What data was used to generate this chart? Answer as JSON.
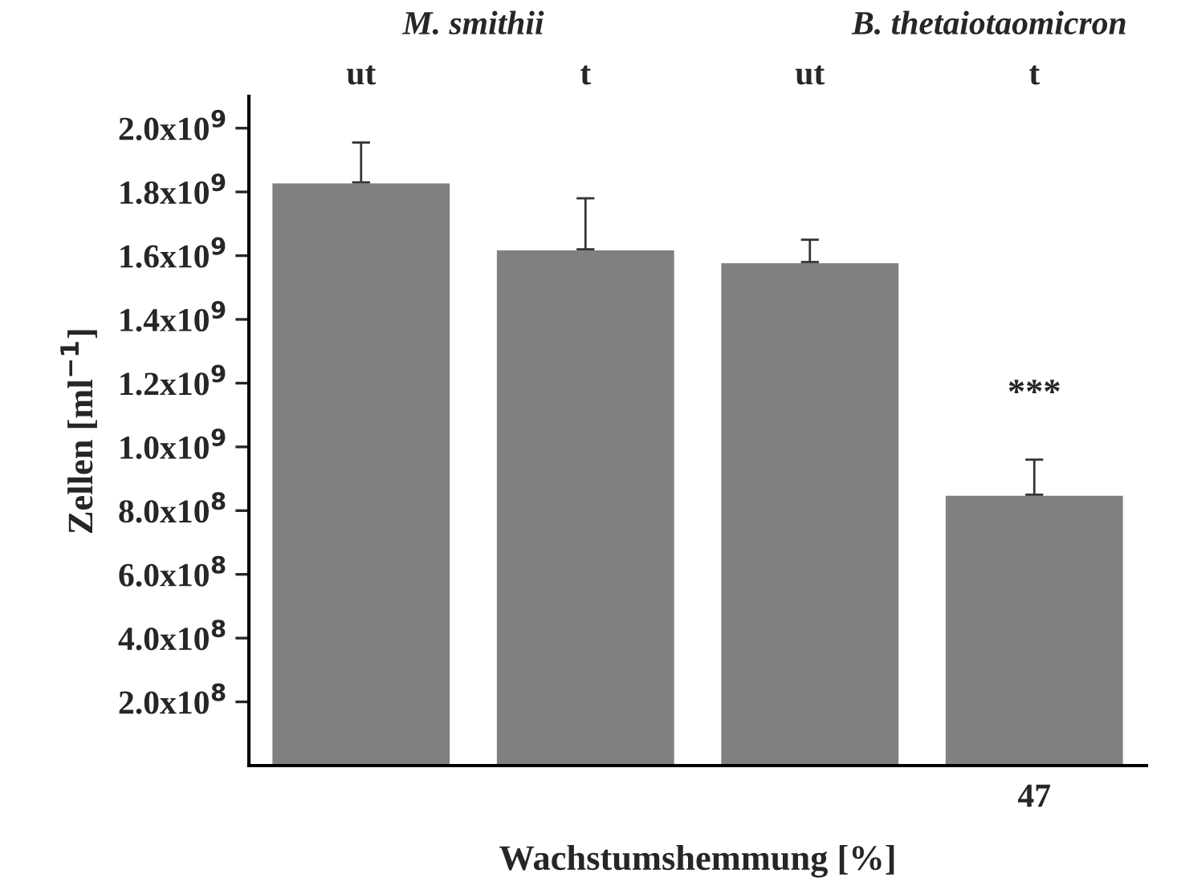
{
  "chart_data": {
    "type": "bar",
    "xlabel": "Wachstumshemmung [%]",
    "ylabel": "Zellen [ml$^{−1}$]",
    "categories": [
      null,
      null,
      null,
      "47"
    ],
    "values": [
      1830000000,
      1620000000,
      1580000000,
      850000000
    ],
    "errors": [
      [
        1830000000,
        1955000000
      ],
      [
        1620000000,
        1780000000
      ],
      [
        1580000000,
        1650000000
      ],
      [
        850000000,
        960000000
      ]
    ],
    "color": "#808080",
    "ylim": [
      0,
      2100000000
    ],
    "yticks": [
      {
        "value": 200000000,
        "label": "2.0x10$^{8}$"
      },
      {
        "value": 400000000,
        "label": "4.0x10$^{8}$"
      },
      {
        "value": 600000000,
        "label": "6.0x10$^{8}$"
      },
      {
        "value": 800000000,
        "label": "8.0x10$^{8}$"
      },
      {
        "value": 1000000000,
        "label": "1.0x10$^{9}$"
      },
      {
        "value": 1200000000,
        "label": "1.2x10$^{9}$"
      },
      {
        "value": 1400000000,
        "label": "1.4x10$^{9}$"
      },
      {
        "value": 1600000000,
        "label": "1.6x10$^{9}$"
      },
      {
        "value": 1800000000,
        "label": "1.8x10$^{9}$"
      },
      {
        "value": 2000000000,
        "label": "2.0x10$^{9}$"
      }
    ],
    "annotations": [
      "M. smithii",
      "B. thetaiotaomicron",
      "ut",
      "t",
      "ut",
      "t",
      "***"
    ],
    "grid": false,
    "legend": false
  }
}
